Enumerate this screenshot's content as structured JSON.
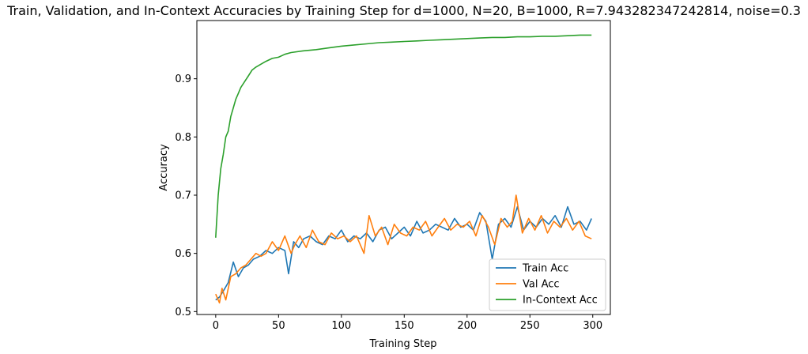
{
  "chart_data": {
    "type": "line",
    "title": "Train, Validation, and In-Context Accuracies by Training Step for d=1000, N=20, B=1000, R=7.943282347242814, noise=0.3",
    "xlabel": "Training Step",
    "ylabel": "Accuracy",
    "xlim": [
      -15,
      314
    ],
    "ylim": [
      0.495,
      1.0
    ],
    "x_ticks": [
      0,
      50,
      100,
      150,
      200,
      250,
      300
    ],
    "y_ticks": [
      0.5,
      0.6,
      0.7,
      0.8,
      0.9
    ],
    "grid": false,
    "legend_position": "lower-right",
    "series": [
      {
        "name": "Train Acc",
        "color": "#1f77b4",
        "x": [
          0,
          3,
          6,
          10,
          14,
          18,
          22,
          26,
          30,
          35,
          40,
          45,
          50,
          55,
          58,
          62,
          66,
          70,
          75,
          80,
          85,
          90,
          95,
          100,
          105,
          110,
          115,
          120,
          125,
          130,
          135,
          140,
          145,
          150,
          155,
          160,
          165,
          170,
          175,
          180,
          185,
          190,
          195,
          200,
          205,
          210,
          215,
          220,
          225,
          230,
          235,
          240,
          245,
          250,
          255,
          260,
          265,
          270,
          275,
          280,
          285,
          290,
          295,
          299
        ],
        "y": [
          0.52,
          0.525,
          0.535,
          0.55,
          0.585,
          0.56,
          0.575,
          0.58,
          0.59,
          0.595,
          0.605,
          0.6,
          0.61,
          0.605,
          0.565,
          0.62,
          0.61,
          0.625,
          0.63,
          0.62,
          0.615,
          0.63,
          0.625,
          0.64,
          0.62,
          0.63,
          0.625,
          0.635,
          0.62,
          0.64,
          0.645,
          0.625,
          0.635,
          0.645,
          0.63,
          0.655,
          0.635,
          0.64,
          0.65,
          0.645,
          0.64,
          0.66,
          0.645,
          0.65,
          0.64,
          0.67,
          0.655,
          0.59,
          0.65,
          0.66,
          0.645,
          0.68,
          0.64,
          0.655,
          0.645,
          0.66,
          0.65,
          0.665,
          0.645,
          0.68,
          0.65,
          0.655,
          0.64,
          0.66
        ]
      },
      {
        "name": "Val Acc",
        "color": "#ff7f0e",
        "x": [
          0,
          3,
          5,
          8,
          12,
          16,
          20,
          24,
          28,
          32,
          36,
          40,
          45,
          50,
          55,
          60,
          63,
          67,
          72,
          77,
          82,
          87,
          92,
          97,
          102,
          107,
          112,
          118,
          122,
          127,
          132,
          137,
          142,
          147,
          152,
          157,
          162,
          167,
          172,
          177,
          182,
          187,
          192,
          197,
          202,
          207,
          212,
          217,
          222,
          227,
          232,
          236,
          239,
          244,
          249,
          254,
          259,
          264,
          269,
          274,
          279,
          284,
          289,
          294,
          299
        ],
        "y": [
          0.53,
          0.515,
          0.54,
          0.52,
          0.56,
          0.565,
          0.575,
          0.58,
          0.59,
          0.6,
          0.595,
          0.6,
          0.62,
          0.605,
          0.63,
          0.6,
          0.615,
          0.63,
          0.61,
          0.64,
          0.62,
          0.615,
          0.635,
          0.625,
          0.63,
          0.62,
          0.63,
          0.6,
          0.665,
          0.63,
          0.645,
          0.615,
          0.65,
          0.635,
          0.63,
          0.645,
          0.64,
          0.655,
          0.63,
          0.645,
          0.66,
          0.64,
          0.65,
          0.645,
          0.655,
          0.63,
          0.665,
          0.645,
          0.615,
          0.66,
          0.645,
          0.655,
          0.7,
          0.635,
          0.66,
          0.64,
          0.665,
          0.635,
          0.655,
          0.645,
          0.66,
          0.64,
          0.655,
          0.63,
          0.625
        ]
      },
      {
        "name": "In-Context Acc",
        "color": "#2ca02c",
        "x": [
          0,
          2,
          4,
          6,
          8,
          10,
          12,
          14,
          16,
          18,
          20,
          23,
          26,
          29,
          32,
          36,
          40,
          45,
          50,
          55,
          60,
          70,
          80,
          90,
          100,
          110,
          120,
          130,
          140,
          150,
          160,
          170,
          180,
          190,
          200,
          210,
          220,
          230,
          240,
          250,
          260,
          270,
          280,
          290,
          299
        ],
        "y": [
          0.627,
          0.7,
          0.745,
          0.77,
          0.8,
          0.81,
          0.835,
          0.85,
          0.865,
          0.875,
          0.885,
          0.895,
          0.905,
          0.915,
          0.92,
          0.925,
          0.93,
          0.935,
          0.937,
          0.942,
          0.945,
          0.948,
          0.95,
          0.953,
          0.956,
          0.958,
          0.96,
          0.962,
          0.963,
          0.964,
          0.965,
          0.966,
          0.967,
          0.968,
          0.969,
          0.97,
          0.971,
          0.971,
          0.972,
          0.972,
          0.973,
          0.973,
          0.974,
          0.975,
          0.975
        ]
      }
    ]
  }
}
